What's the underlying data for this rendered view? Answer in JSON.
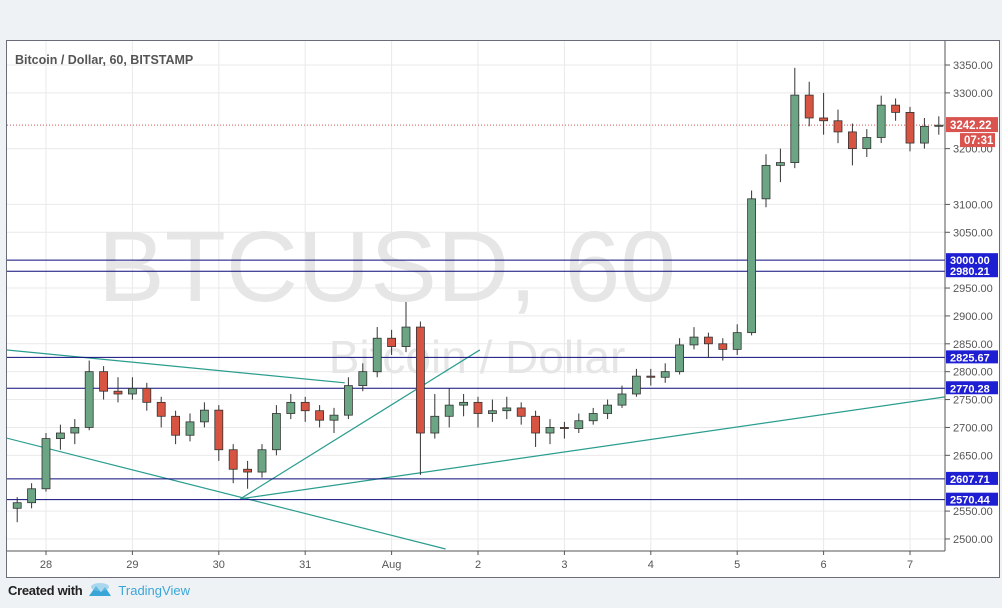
{
  "chart_data": {
    "type": "candlestick",
    "title": "Bitcoin / Dollar, 60, BITSTAMP",
    "watermark": {
      "symbol": "BTCUSD, 60",
      "name": "Bitcoin / Dollar"
    },
    "ylim": [
      2475,
      3390
    ],
    "y_ticks": [
      3350,
      3300,
      3200,
      3100,
      3050,
      2950,
      2900,
      2850,
      2800,
      2750,
      2700,
      2650,
      2550,
      2500
    ],
    "x_ticks": [
      {
        "label": "28",
        "time": "2017-07-28 00:00"
      },
      {
        "label": "29",
        "time": "2017-07-29 00:00"
      },
      {
        "label": "30",
        "time": "2017-07-30 00:00"
      },
      {
        "label": "31",
        "time": "2017-07-31 00:00"
      },
      {
        "label": "Aug",
        "time": "2017-08-01 00:00"
      },
      {
        "label": "2",
        "time": "2017-08-02 00:00"
      },
      {
        "label": "3",
        "time": "2017-08-03 00:00"
      },
      {
        "label": "4",
        "time": "2017-08-04 00:00"
      },
      {
        "label": "5",
        "time": "2017-08-05 00:00"
      },
      {
        "label": "6",
        "time": "2017-08-06 00:00"
      },
      {
        "label": "7",
        "time": "2017-08-07 00:00"
      }
    ],
    "grid": true,
    "candle_start": "2017-07-27 16:00",
    "candle_interval_hours": 4,
    "ohlc": [
      [
        2555,
        2575,
        2530,
        2565
      ],
      [
        2565,
        2600,
        2555,
        2590
      ],
      [
        2590,
        2690,
        2585,
        2680
      ],
      [
        2680,
        2705,
        2660,
        2690
      ],
      [
        2690,
        2715,
        2670,
        2700
      ],
      [
        2700,
        2820,
        2695,
        2800
      ],
      [
        2800,
        2810,
        2750,
        2765
      ],
      [
        2765,
        2790,
        2745,
        2760
      ],
      [
        2760,
        2790,
        2750,
        2770
      ],
      [
        2770,
        2780,
        2730,
        2745
      ],
      [
        2745,
        2755,
        2700,
        2720
      ],
      [
        2720,
        2730,
        2670,
        2686
      ],
      [
        2686,
        2725,
        2675,
        2710
      ],
      [
        2710,
        2745,
        2700,
        2731
      ],
      [
        2731,
        2740,
        2640,
        2660
      ],
      [
        2660,
        2670,
        2600,
        2625
      ],
      [
        2625,
        2640,
        2590,
        2620
      ],
      [
        2620,
        2670,
        2610,
        2660
      ],
      [
        2660,
        2740,
        2650,
        2725
      ],
      [
        2725,
        2760,
        2715,
        2745
      ],
      [
        2745,
        2755,
        2710,
        2730
      ],
      [
        2730,
        2740,
        2700,
        2713
      ],
      [
        2713,
        2735,
        2690,
        2722
      ],
      [
        2722,
        2790,
        2715,
        2775
      ],
      [
        2775,
        2815,
        2765,
        2800
      ],
      [
        2800,
        2880,
        2790,
        2860
      ],
      [
        2860,
        2875,
        2830,
        2845
      ],
      [
        2845,
        2925,
        2835,
        2880
      ],
      [
        2880,
        2890,
        2615,
        2690
      ],
      [
        2690,
        2760,
        2680,
        2720
      ],
      [
        2720,
        2770,
        2700,
        2740
      ],
      [
        2740,
        2760,
        2720,
        2745
      ],
      [
        2745,
        2755,
        2700,
        2725
      ],
      [
        2725,
        2750,
        2710,
        2730
      ],
      [
        2730,
        2755,
        2715,
        2735
      ],
      [
        2735,
        2745,
        2705,
        2720
      ],
      [
        2720,
        2730,
        2665,
        2690
      ],
      [
        2690,
        2715,
        2670,
        2700
      ],
      [
        2700,
        2710,
        2680,
        2698
      ],
      [
        2698,
        2725,
        2690,
        2712
      ],
      [
        2712,
        2735,
        2705,
        2725
      ],
      [
        2725,
        2750,
        2715,
        2740
      ],
      [
        2740,
        2775,
        2735,
        2760
      ],
      [
        2760,
        2805,
        2755,
        2792
      ],
      [
        2792,
        2805,
        2775,
        2790
      ],
      [
        2790,
        2815,
        2780,
        2800
      ],
      [
        2800,
        2860,
        2795,
        2848
      ],
      [
        2848,
        2880,
        2840,
        2862
      ],
      [
        2862,
        2870,
        2825,
        2850
      ],
      [
        2850,
        2860,
        2820,
        2840
      ],
      [
        2840,
        2885,
        2830,
        2870
      ],
      [
        2870,
        3125,
        2865,
        3110
      ],
      [
        3110,
        3190,
        3095,
        3170
      ],
      [
        3170,
        3200,
        3140,
        3175
      ],
      [
        3175,
        3345,
        3165,
        3296
      ],
      [
        3296,
        3320,
        3240,
        3255
      ],
      [
        3255,
        3300,
        3225,
        3250
      ],
      [
        3250,
        3270,
        3210,
        3230
      ],
      [
        3230,
        3245,
        3170,
        3200
      ],
      [
        3200,
        3235,
        3185,
        3220
      ],
      [
        3220,
        3295,
        3210,
        3278
      ],
      [
        3278,
        3290,
        3250,
        3265
      ],
      [
        3265,
        3275,
        3195,
        3210
      ],
      [
        3210,
        3255,
        3200,
        3240
      ],
      [
        3240,
        3258,
        3225,
        3242
      ]
    ],
    "horizontal_levels": [
      {
        "price": 3000.0,
        "label": "3000.00"
      },
      {
        "price": 2980.21,
        "label": "2980.21"
      },
      {
        "price": 2825.67,
        "label": "2825.67"
      },
      {
        "price": 2770.28,
        "label": "2770.28"
      },
      {
        "price": 2607.71,
        "label": "2607.71"
      },
      {
        "price": 2570.44,
        "label": "2570.44"
      }
    ],
    "trend_lines": [
      {
        "from": [
          "2017-07-27 13:00",
          2839
        ],
        "to": [
          "2017-07-31 11:00",
          2780
        ]
      },
      {
        "from": [
          "2017-07-27 13:00",
          2681
        ],
        "to": [
          "2017-08-01 15:00",
          2482
        ]
      },
      {
        "from": [
          "2017-07-30 06:00",
          2572
        ],
        "to": [
          "2017-08-02 00:30",
          2839
        ]
      },
      {
        "from": [
          "2017-07-30 06:00",
          2572
        ],
        "to": [
          "2017-08-07 10:00",
          2755
        ]
      }
    ],
    "last_price": {
      "value": 3242.22,
      "label": "3242.22",
      "countdown": "07:31"
    },
    "colors": {
      "up": "#6ba583",
      "down": "#d75442",
      "level_line": "#0b0b7a",
      "level_label_bg": "#1e1ed2",
      "trend": "#2a9d8f",
      "last_price": "#d9534f"
    }
  },
  "footer": {
    "created_with": "Created with",
    "brand": "TradingView"
  }
}
